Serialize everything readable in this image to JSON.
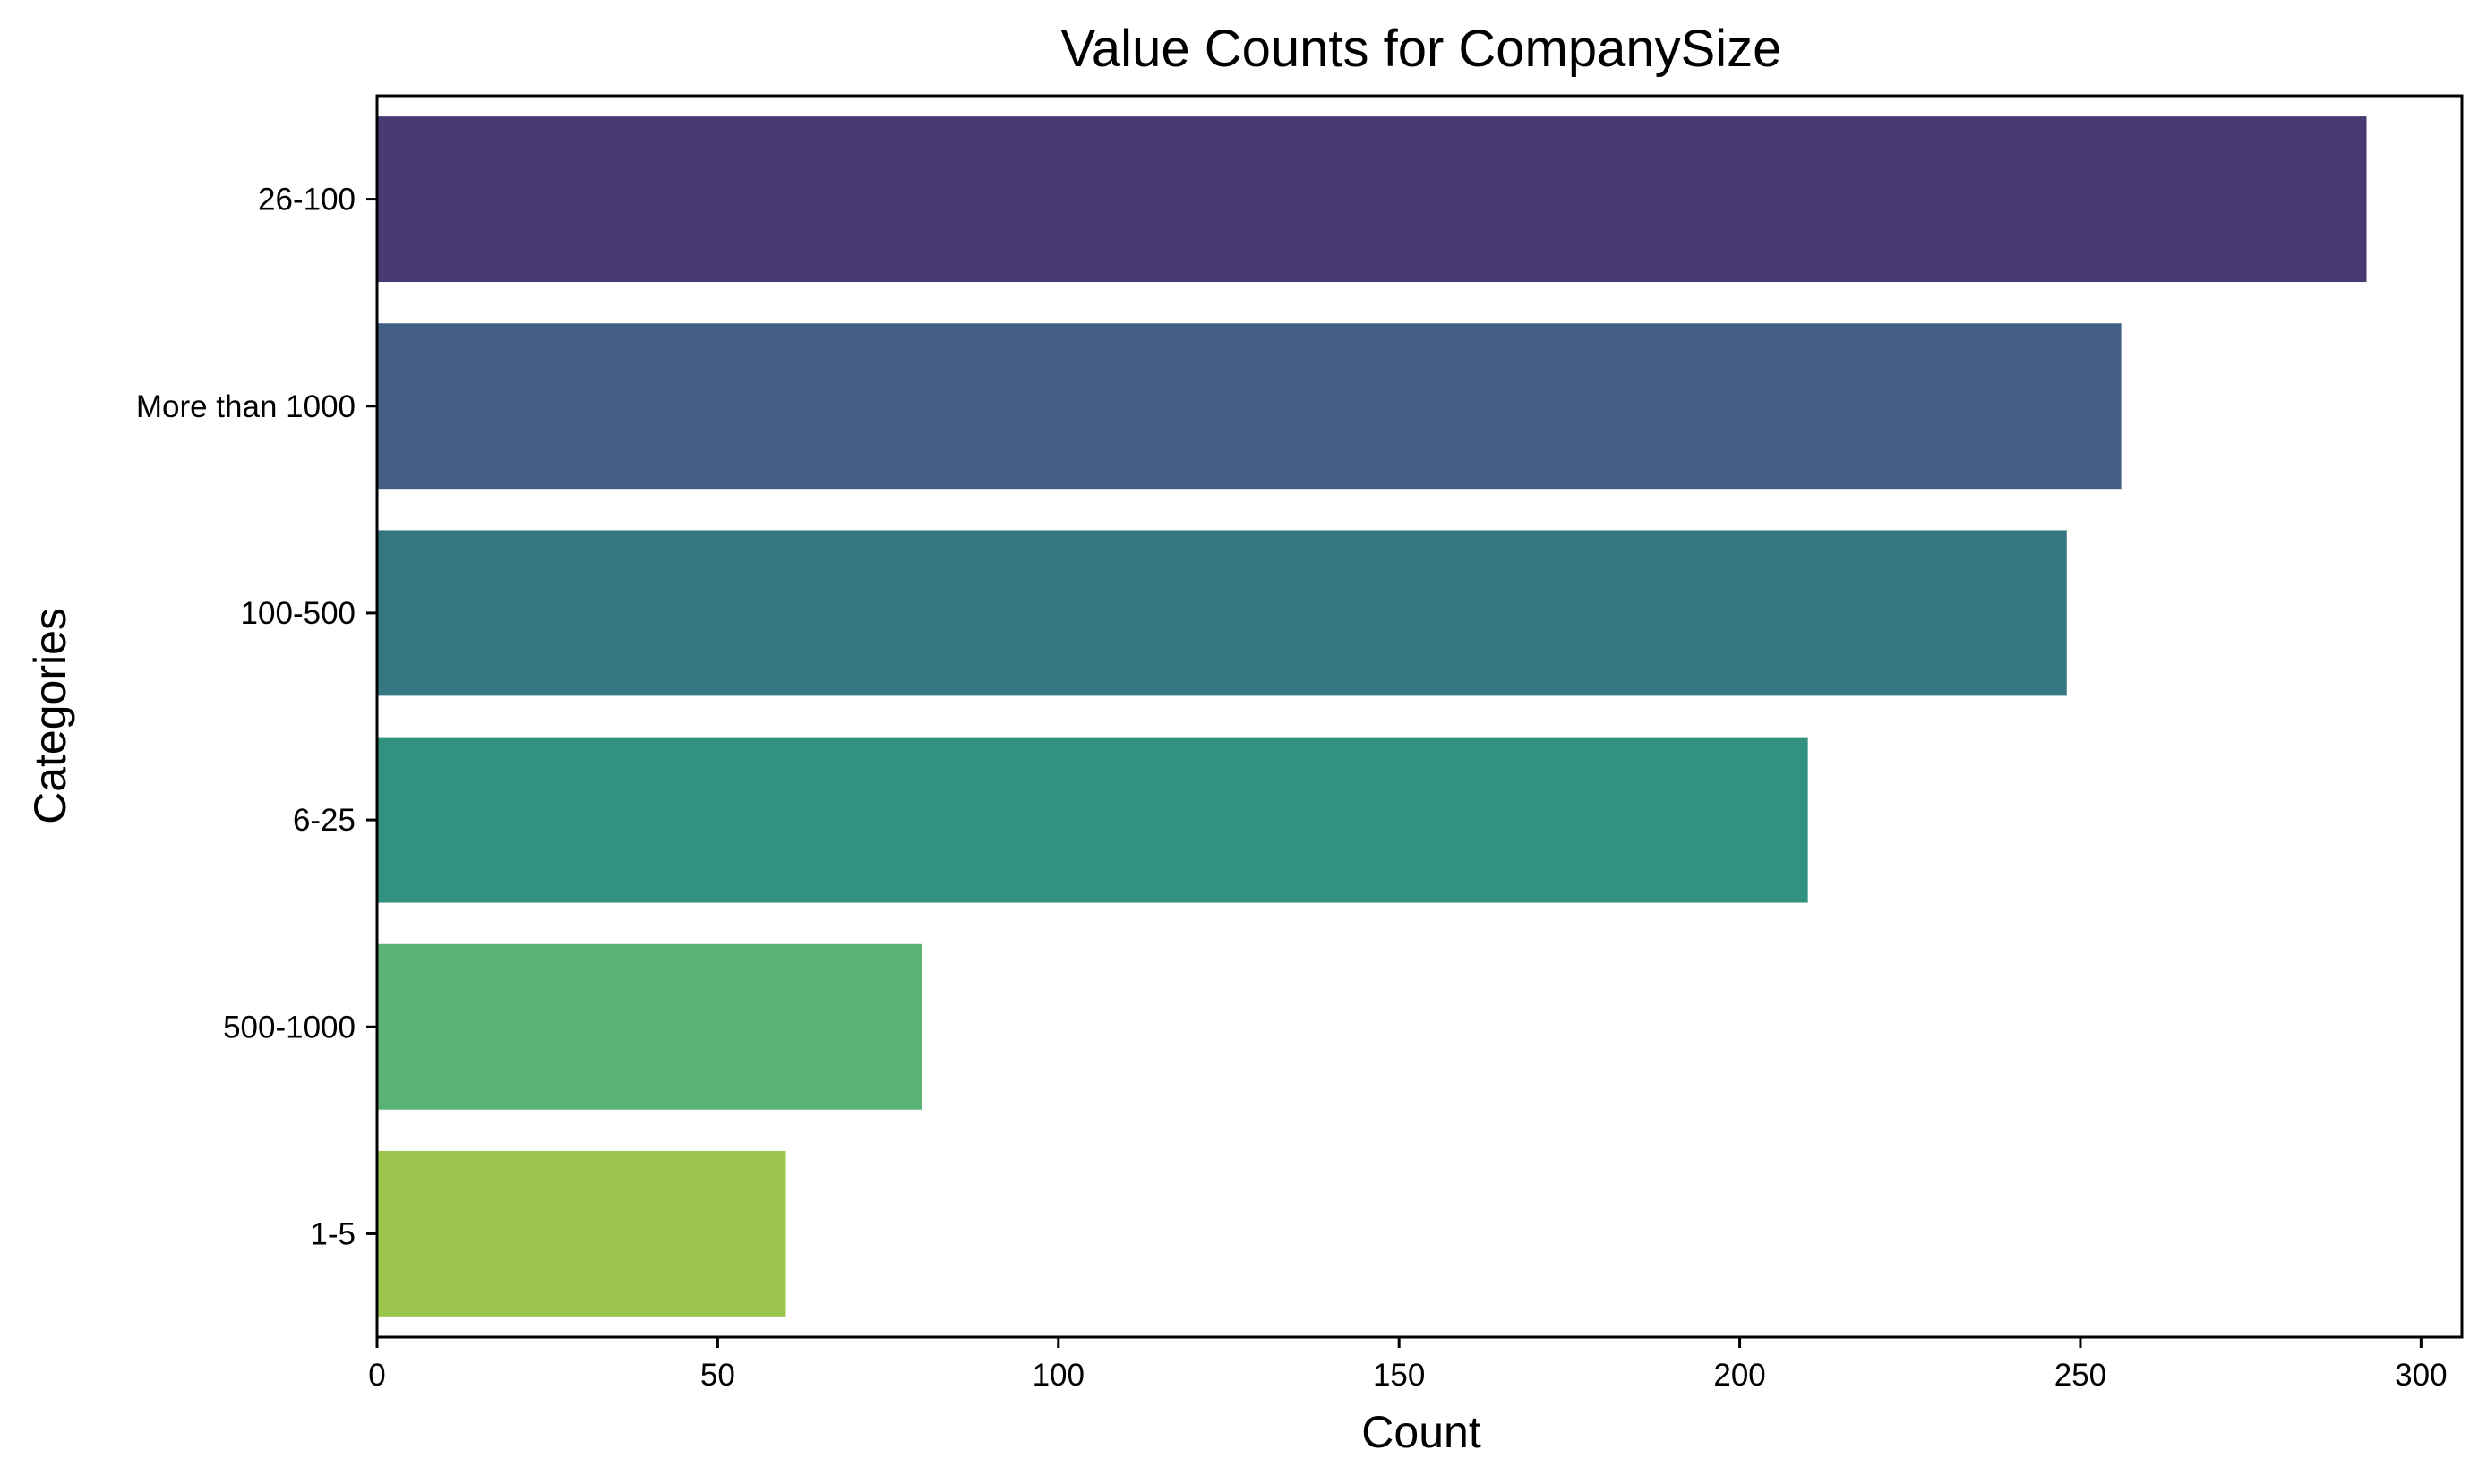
{
  "chart_data": {
    "type": "bar",
    "orientation": "horizontal",
    "title": "Value Counts for CompanySize",
    "xlabel": "Count",
    "ylabel": "Categories",
    "categories": [
      "26-100",
      "More than 1000",
      "100-500",
      "6-25",
      "500-1000",
      "1-5"
    ],
    "values": [
      292,
      256,
      248,
      210,
      80,
      60
    ],
    "colors": [
      "#4a3a74",
      "#425e84",
      "#357680",
      "#32917f",
      "#5ab374",
      "#9bc54c"
    ],
    "xlim": [
      0,
      306
    ],
    "xticks": [
      0,
      50,
      100,
      150,
      200,
      250,
      300
    ],
    "grid": false,
    "legend": "none"
  }
}
